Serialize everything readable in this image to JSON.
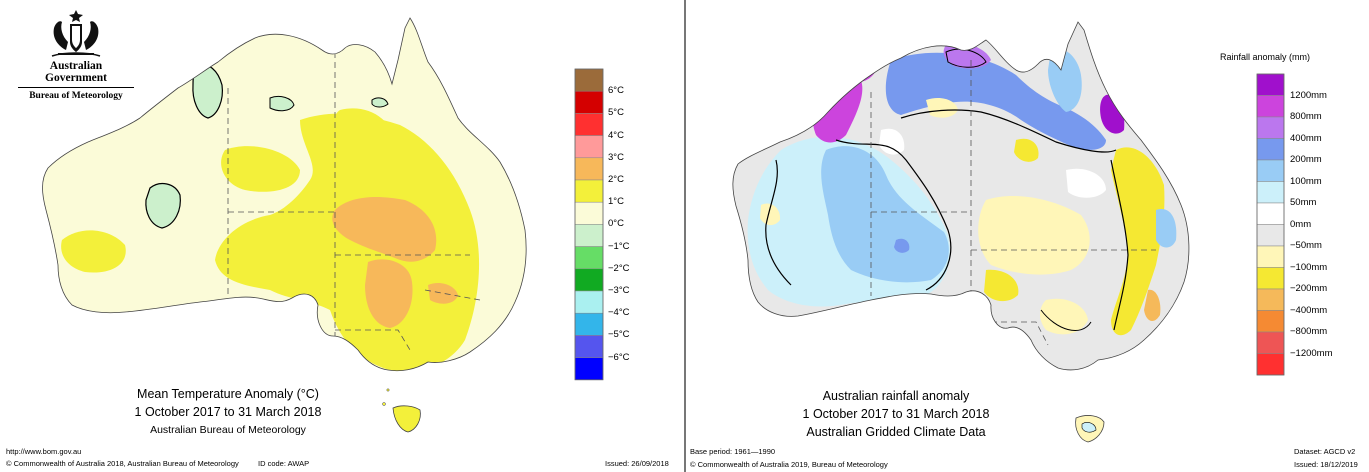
{
  "left": {
    "logo": {
      "line1": "Australian Government",
      "line2": "Bureau of Meteorology",
      "icon": "coat-of-arms-icon"
    },
    "title": {
      "line1": "Mean Temperature Anomaly (°C)",
      "line2": "1 October 2017 to 31 March 2018",
      "line3": "Australian Bureau of Meteorology"
    },
    "url": "http://www.bom.gov.au",
    "footer": {
      "copyright": "© Commonwealth of Australia 2018, Australian Bureau of Meteorology",
      "id_code": "ID code: AWAP",
      "issued": "Issued: 26/09/2018"
    },
    "legend": {
      "labels": [
        "6°C",
        "5°C",
        "4°C",
        "3°C",
        "2°C",
        "1°C",
        "0°C",
        "−1°C",
        "−2°C",
        "−3°C",
        "−4°C",
        "−5°C",
        "−6°C"
      ],
      "colors": [
        "#9b6b3a",
        "#d40000",
        "#ff3030",
        "#ff9a9a",
        "#f7b85a",
        "#f3f03a",
        "#fbfbd8",
        "#ccf0cc",
        "#66dd66",
        "#11aa22",
        "#aaf0f0",
        "#33b5ea",
        "#5555ee",
        "#0000ff"
      ]
    }
  },
  "right": {
    "legend_title": "Rainfall anomaly (mm)",
    "title": {
      "line1": "Australian rainfall anomaly",
      "line2": "1 October 2017 to 31 March 2018",
      "line3": "Australian Gridded Climate Data"
    },
    "base_period": "Base period: 1961—1990",
    "dataset": "Dataset: AGCD v2",
    "footer": {
      "copyright": "© Commonwealth of Australia 2019, Bureau of Meteorology",
      "issued": "Issued: 18/12/2019"
    },
    "legend": {
      "labels": [
        "1200mm",
        "800mm",
        "400mm",
        "200mm",
        "100mm",
        "50mm",
        "0mm",
        "−50mm",
        "−100mm",
        "−200mm",
        "−400mm",
        "−800mm",
        "−1200mm"
      ],
      "colors": [
        "#a010cc",
        "#cc44dd",
        "#bb77ee",
        "#7799ee",
        "#99ccf5",
        "#ccf0fa",
        "#ffffff",
        "#e8e8e8",
        "#fff6b8",
        "#f5e832",
        "#f5b95a",
        "#f58a33",
        "#ee5555",
        "#ff3030"
      ]
    }
  }
}
